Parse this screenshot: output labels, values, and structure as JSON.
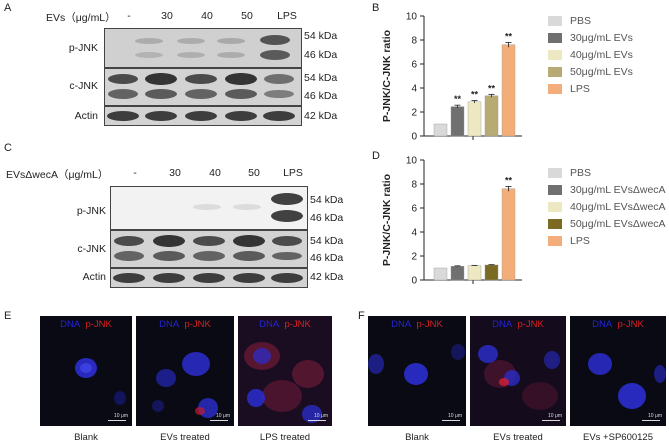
{
  "panel_a": {
    "letter": "A",
    "header_label": "EVs（μg/mL）",
    "columns": [
      "-",
      "30",
      "40",
      "50",
      "LPS"
    ],
    "rows": [
      "p-JNK",
      "c-JNK",
      "Actin"
    ],
    "kda_pjnk": [
      "54 kDa",
      "46 kDa"
    ],
    "kda_cjnk": [
      "54 kDa",
      "46 kDa"
    ],
    "kda_actin": "42 kDa"
  },
  "panel_c": {
    "letter": "C",
    "header_label": "EVsΔwecA（μg/mL）",
    "columns": [
      "-",
      "30",
      "40",
      "50",
      "LPS"
    ],
    "rows": [
      "p-JNK",
      "c-JNK",
      "Actin"
    ],
    "kda_pjnk": [
      "54 kDa",
      "46 kDa"
    ],
    "kda_cjnk": [
      "54 kDa",
      "46 kDa"
    ],
    "kda_actin": "42 kDa"
  },
  "panel_b": {
    "letter": "B",
    "legend": [
      "PBS",
      "30μg/mL EVs",
      "40μg/mL EVs",
      "50μg/mL EVs",
      "LPS"
    ]
  },
  "panel_d": {
    "letter": "D",
    "legend": [
      "PBS",
      "30μg/mL EVsΔwecA",
      "40μg/mL EVsΔwecA",
      "50μg/mL EVsΔwecA",
      "LPS"
    ]
  },
  "chart_data": [
    {
      "type": "bar",
      "categories": [
        "PBS",
        "30μg/mL EVs",
        "40μg/mL EVs",
        "50μg/mL EVs",
        "LPS"
      ],
      "values": [
        1.0,
        2.45,
        2.85,
        3.35,
        7.6
      ],
      "errors": [
        0,
        0.12,
        0.1,
        0.12,
        0.2
      ],
      "significance": [
        "",
        "**",
        "**",
        "**",
        "**"
      ],
      "colors": [
        "#d9d9d9",
        "#707070",
        "#eee8c2",
        "#b7aa72",
        "#f2ad78"
      ],
      "title": "",
      "xlabel": "",
      "ylabel": "P-JNK/C-JNK ratio",
      "ylim": [
        0,
        10
      ],
      "yticks": [
        0,
        2,
        4,
        6,
        8,
        10
      ],
      "legend_position": "right"
    },
    {
      "type": "bar",
      "categories": [
        "PBS",
        "30μg/mL EVsΔwecA",
        "40μg/mL EVsΔwecA",
        "50μg/mL EVsΔwecA",
        "LPS"
      ],
      "values": [
        1.0,
        1.15,
        1.2,
        1.25,
        7.6
      ],
      "errors": [
        0,
        0.03,
        0.02,
        0.03,
        0.2
      ],
      "significance": [
        "",
        "",
        "",
        "",
        "**"
      ],
      "colors": [
        "#d9d9d9",
        "#707070",
        "#eee8c2",
        "#7a6a22",
        "#f2ad78"
      ],
      "title": "",
      "xlabel": "",
      "ylabel": "P-JNK/C-JNK ratio",
      "ylim": [
        0,
        10
      ],
      "yticks": [
        0,
        2,
        4,
        6,
        8,
        10
      ],
      "legend_position": "right"
    }
  ],
  "panel_e": {
    "letter": "E",
    "dna_label": "DNA",
    "pjnk_label": "p-JNK",
    "scale_label": "10 μm",
    "captions": [
      "Blank",
      "EVs treated",
      "LPS  treated"
    ]
  },
  "panel_f": {
    "letter": "F",
    "dna_label": "DNA",
    "pjnk_label": "p-JNK",
    "scale_label": "10 μm",
    "captions": [
      "Blank",
      "EVs treated",
      "EVs +SP600125"
    ]
  }
}
